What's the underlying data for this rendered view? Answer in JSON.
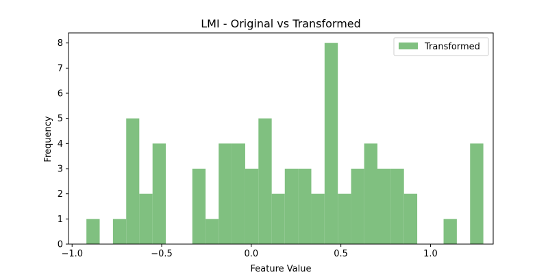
{
  "chart_data": {
    "type": "bar",
    "title": "LMI - Original vs Transformed",
    "xlabel": "Feature Value",
    "ylabel": "Frequency",
    "xlim": [
      -1.02,
      1.35
    ],
    "ylim": [
      0,
      8.4
    ],
    "x_ticks": [
      -1.0,
      -0.5,
      0.0,
      0.5,
      1.0
    ],
    "x_tick_labels": [
      "−1.0",
      "−0.5",
      "0.0",
      "0.5",
      "1.0"
    ],
    "y_ticks": [
      0,
      1,
      2,
      3,
      4,
      5,
      6,
      7,
      8
    ],
    "y_tick_labels": [
      "0",
      "1",
      "2",
      "3",
      "4",
      "5",
      "6",
      "7",
      "8"
    ],
    "grid": false,
    "legend_position": "top-right",
    "series": [
      {
        "name": "Transformed",
        "color": "#80c080",
        "bin_edges": [
          -0.92,
          -0.846,
          -0.772,
          -0.698,
          -0.625,
          -0.551,
          -0.477,
          -0.403,
          -0.329,
          -0.255,
          -0.182,
          -0.108,
          -0.034,
          0.04,
          0.114,
          0.187,
          0.261,
          0.335,
          0.409,
          0.483,
          0.557,
          0.63,
          0.704,
          0.778,
          0.852,
          0.926,
          1.0,
          1.073,
          1.147,
          1.221,
          1.295
        ],
        "values": [
          1,
          0,
          1,
          5,
          2,
          4,
          0,
          0,
          3,
          1,
          4,
          4,
          3,
          5,
          2,
          3,
          3,
          2,
          8,
          2,
          3,
          4,
          3,
          3,
          2,
          0,
          0,
          1,
          0,
          4
        ]
      }
    ]
  }
}
